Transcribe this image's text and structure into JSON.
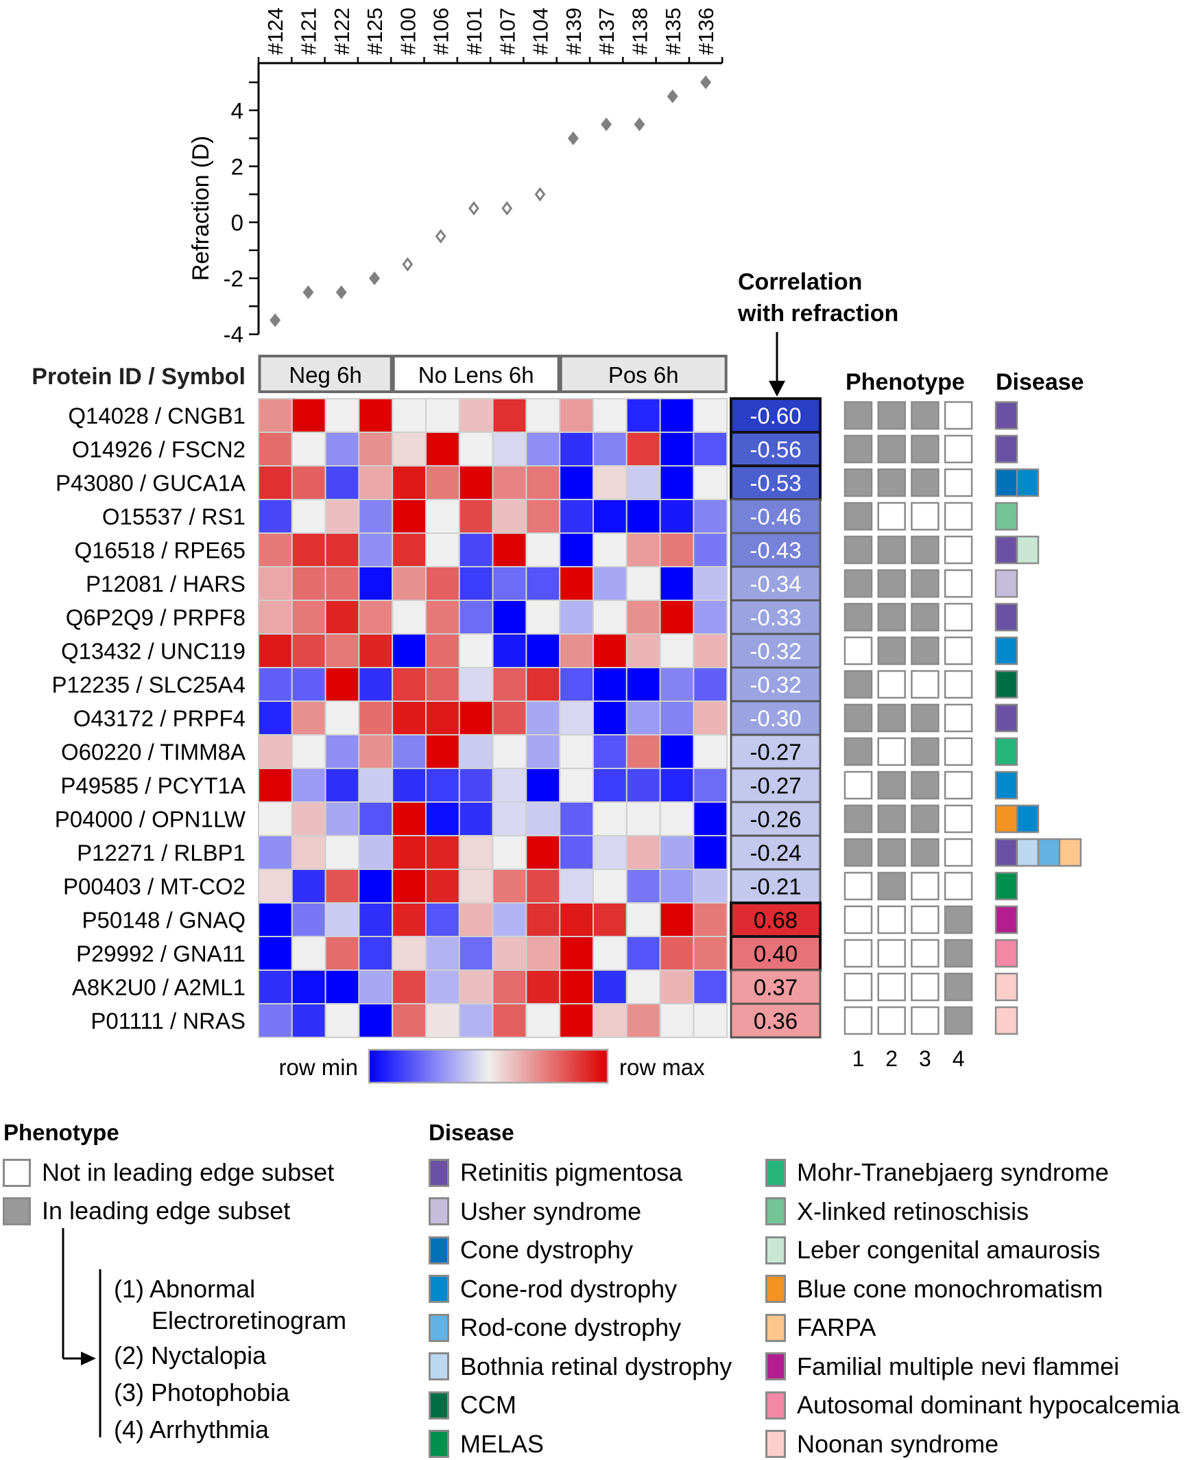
{
  "chart_data": [
    {
      "type": "scatter",
      "title": "",
      "ylabel": "Refraction (D)",
      "xlabel": "",
      "ylim": [
        -4,
        5.5
      ],
      "yticks": [
        -4,
        -2,
        0,
        2,
        4
      ],
      "ytick_labels": [
        "-4",
        "-2",
        "0",
        "2",
        "4"
      ],
      "minor_yticks": [
        -3,
        -1,
        1,
        3,
        5
      ],
      "x_position": "top",
      "categories": [
        "#124",
        "#121",
        "#122",
        "#125",
        "#100",
        "#106",
        "#101",
        "#107",
        "#104",
        "#139",
        "#137",
        "#138",
        "#135",
        "#136"
      ],
      "values": [
        -3.5,
        -2.5,
        -2.5,
        -2,
        -1.5,
        -0.5,
        0.5,
        0.5,
        1,
        3,
        3.5,
        3.5,
        4.5,
        5
      ],
      "marker_filled": [
        true,
        true,
        true,
        true,
        false,
        false,
        false,
        false,
        false,
        true,
        true,
        true,
        true,
        true
      ],
      "marker_color": "#808080",
      "grid": false
    },
    {
      "type": "heatmap",
      "row_header": "Protein ID / Symbol",
      "column_groups": [
        {
          "label": "Neg 6h",
          "span": 4,
          "fill": "#e6e6e6"
        },
        {
          "label": "No Lens 6h",
          "span": 5,
          "fill": "#ffffff"
        },
        {
          "label": "Pos 6h",
          "span": 5,
          "fill": "#e6e6e6"
        }
      ],
      "columns": [
        "#124",
        "#121",
        "#122",
        "#125",
        "#100",
        "#106",
        "#101",
        "#107",
        "#104",
        "#139",
        "#137",
        "#138",
        "#135",
        "#136"
      ],
      "value_scale": "row-normalized, -1 = row min (blue), 0 = mid (light gray), 1 = row max (red)",
      "colorbar": {
        "min_label": "row min",
        "max_label": "row max",
        "min_color": "#0000ff",
        "mid_color": "#efefef",
        "max_color": "#dd0000"
      },
      "rows": [
        {
          "label": "Q14028 / CNGB1",
          "values": [
            0.4,
            1,
            0,
            1,
            0,
            0,
            0.2,
            0.8,
            0,
            0.35,
            0,
            -0.85,
            -1,
            0
          ]
        },
        {
          "label": "O14926 / FSCN2",
          "values": [
            0.55,
            0,
            -0.4,
            0.4,
            0.1,
            1,
            0,
            -0.1,
            -0.4,
            -0.8,
            -0.45,
            0.75,
            -1,
            -0.65
          ]
        },
        {
          "label": "P43080 / GUCA1A",
          "values": [
            0.8,
            0.6,
            -0.7,
            0.3,
            0.9,
            0.5,
            1,
            0.45,
            0.5,
            -1,
            0.1,
            -0.15,
            -1,
            0
          ]
        },
        {
          "label": "O15537 / RS1",
          "values": [
            -0.7,
            0,
            0.2,
            -0.45,
            1,
            0,
            0.7,
            0.2,
            0.5,
            -0.8,
            -0.95,
            -1,
            -0.9,
            -0.45
          ]
        },
        {
          "label": "Q16518 / RPE65",
          "values": [
            0.5,
            0.8,
            0.8,
            -0.4,
            0.8,
            0,
            -0.7,
            1,
            0,
            -1,
            0,
            0.35,
            0.5,
            -0.5
          ]
        },
        {
          "label": "P12081 / HARS",
          "values": [
            0.3,
            0.55,
            0.55,
            -0.95,
            0.4,
            0.6,
            -0.75,
            -0.55,
            -0.65,
            1,
            -0.3,
            0,
            -1,
            -0.2
          ]
        },
        {
          "label": "Q6P2Q9 / PRPF8",
          "values": [
            0.3,
            0.5,
            0.85,
            0.45,
            0,
            0.5,
            -0.55,
            -1,
            0,
            -0.25,
            0,
            0.4,
            1,
            -0.35
          ]
        },
        {
          "label": "Q13432 / UNC119",
          "values": [
            0.9,
            0.7,
            0.5,
            0.85,
            -1,
            0.55,
            0,
            -0.9,
            -1,
            0.4,
            1,
            0.25,
            0,
            0.25
          ]
        },
        {
          "label": "P12235 / SLC25A4",
          "values": [
            -0.6,
            -0.6,
            1,
            -0.8,
            0.75,
            0.6,
            -0.1,
            0.6,
            0.8,
            -0.65,
            -1,
            -1,
            -0.45,
            -0.6
          ]
        },
        {
          "label": "O43172 / PRPF4",
          "values": [
            -0.85,
            0.4,
            0,
            0.55,
            0.9,
            0.9,
            1,
            0.65,
            -0.3,
            -0.1,
            -1,
            -0.35,
            -0.45,
            0.25
          ]
        },
        {
          "label": "O60220 / TIMM8A",
          "values": [
            0.2,
            0,
            -0.4,
            0.4,
            -0.45,
            1,
            -0.15,
            0,
            -0.3,
            0,
            -0.65,
            0.5,
            -1,
            0
          ]
        },
        {
          "label": "P49585 / PCYT1A",
          "values": [
            1,
            -0.35,
            -0.8,
            -0.15,
            -0.8,
            -0.75,
            -0.7,
            -0.1,
            -1,
            0,
            -0.75,
            -0.7,
            -0.85,
            -0.55
          ]
        },
        {
          "label": "P04000 / OPN1LW",
          "values": [
            0,
            0.2,
            -0.3,
            -0.65,
            1,
            -0.95,
            -0.8,
            -0.1,
            -0.15,
            -0.6,
            0,
            0,
            0,
            -1
          ]
        },
        {
          "label": "P12271 / RLBP1",
          "values": [
            -0.4,
            0.15,
            0,
            -0.2,
            0.9,
            0.85,
            0.1,
            0,
            1,
            -0.6,
            -0.1,
            0.25,
            -0.3,
            -1
          ]
        },
        {
          "label": "P00403 / MT-CO2",
          "values": [
            0.1,
            -0.8,
            0.65,
            -1,
            1,
            0.85,
            0.1,
            0.5,
            0.7,
            -0.1,
            0,
            -0.5,
            -0.35,
            -0.2
          ]
        },
        {
          "label": "P50148 / GNAQ",
          "values": [
            -1,
            -0.5,
            -0.15,
            -0.8,
            0.85,
            -0.65,
            0.25,
            -0.25,
            0.8,
            0.9,
            0.8,
            0,
            1,
            0.5
          ]
        },
        {
          "label": "P29992 / GNA11",
          "values": [
            -1,
            0,
            0.55,
            -0.75,
            0.1,
            -0.25,
            -0.55,
            0.2,
            0.3,
            1,
            0,
            -0.65,
            0.6,
            0.5
          ]
        },
        {
          "label": "A8K2U0 / A2ML1",
          "values": [
            -0.8,
            -0.95,
            -1,
            -0.3,
            0.7,
            -0.25,
            0.2,
            0.55,
            0.85,
            1,
            -0.8,
            0,
            0.25,
            -0.65
          ]
        },
        {
          "label": "P01111 / NRAS",
          "values": [
            -0.5,
            -0.8,
            0,
            -1,
            0.55,
            0.05,
            -0.25,
            0.6,
            0,
            1,
            0.15,
            0.4,
            0,
            0
          ]
        }
      ]
    },
    {
      "type": "table",
      "title": "Correlation with refraction",
      "values": [
        -0.6,
        -0.56,
        -0.53,
        -0.46,
        -0.43,
        -0.34,
        -0.33,
        -0.32,
        -0.32,
        -0.3,
        -0.27,
        -0.27,
        -0.26,
        -0.24,
        -0.21,
        0.68,
        0.4,
        0.37,
        0.36
      ],
      "labels": [
        "-0.60",
        "-0.56",
        "-0.53",
        "-0.46",
        "-0.43",
        "-0.34",
        "-0.33",
        "-0.32",
        "-0.32",
        "-0.30",
        "-0.27",
        "-0.27",
        "-0.26",
        "-0.24",
        "-0.21",
        "0.68",
        "0.40",
        "0.37",
        "0.36"
      ],
      "fills": [
        "#2a3fc6",
        "#4c5fce",
        "#4c5fce",
        "#7582d8",
        "#7582d8",
        "#9ba4e0",
        "#9ba4e0",
        "#9ba4e0",
        "#9ba4e0",
        "#9ba4e0",
        "#c3c8ec",
        "#c3c8ec",
        "#c3c8ec",
        "#c3c8ec",
        "#c3c8ec",
        "#e02a32",
        "#e9727a",
        "#f09ca0",
        "#f09ca0"
      ],
      "text_colors": [
        "#ffffff",
        "#ffffff",
        "#ffffff",
        "#ffffff",
        "#ffffff",
        "#ffffff",
        "#ffffff",
        "#ffffff",
        "#ffffff",
        "#ffffff",
        "#000000",
        "#000000",
        "#000000",
        "#000000",
        "#000000",
        "#000000",
        "#000000",
        "#000000",
        "#000000"
      ],
      "emphasized": [
        true,
        true,
        true,
        false,
        false,
        false,
        false,
        false,
        false,
        false,
        false,
        false,
        false,
        false,
        false,
        true,
        true,
        false,
        false
      ]
    },
    {
      "type": "table",
      "title": "Phenotype",
      "columns": [
        "1",
        "2",
        "3",
        "4"
      ],
      "in_leading_edge": [
        [
          1,
          1,
          1,
          0
        ],
        [
          1,
          1,
          1,
          0
        ],
        [
          1,
          1,
          1,
          0
        ],
        [
          1,
          0,
          0,
          0
        ],
        [
          1,
          1,
          1,
          0
        ],
        [
          1,
          1,
          1,
          0
        ],
        [
          1,
          1,
          1,
          0
        ],
        [
          0,
          1,
          1,
          0
        ],
        [
          1,
          0,
          0,
          0
        ],
        [
          1,
          1,
          1,
          0
        ],
        [
          1,
          0,
          1,
          0
        ],
        [
          0,
          1,
          1,
          0
        ],
        [
          1,
          1,
          1,
          0
        ],
        [
          1,
          1,
          1,
          0
        ],
        [
          0,
          1,
          0,
          0
        ],
        [
          0,
          0,
          0,
          1
        ],
        [
          0,
          0,
          0,
          1
        ],
        [
          0,
          0,
          0,
          1
        ],
        [
          0,
          0,
          0,
          1
        ]
      ]
    },
    {
      "type": "table",
      "title": "Disease",
      "assignments": [
        [
          "Retinitis pigmentosa"
        ],
        [
          "Retinitis pigmentosa"
        ],
        [
          "Cone dystrophy",
          "Cone-rod dystrophy"
        ],
        [
          "X-linked retinoschisis"
        ],
        [
          "Retinitis pigmentosa",
          "Leber congenital amaurosis"
        ],
        [
          "Usher syndrome"
        ],
        [
          "Retinitis pigmentosa"
        ],
        [
          "Cone-rod dystrophy"
        ],
        [
          "CCM"
        ],
        [
          "Retinitis pigmentosa"
        ],
        [
          "Mohr-Tranebjaerg syndrome"
        ],
        [
          "Cone-rod dystrophy"
        ],
        [
          "Blue cone monochromatism",
          "Cone-rod dystrophy"
        ],
        [
          "Retinitis pigmentosa",
          "Bothnia retinal dystrophy",
          "Rod-cone dystrophy",
          "FARPA"
        ],
        [
          "MELAS"
        ],
        [
          "Familial multiple nevi flammei"
        ],
        [
          "Autosomal dominant hypocalcemia"
        ],
        [
          "Noonan syndrome"
        ],
        [
          "Noonan syndrome"
        ]
      ]
    }
  ],
  "labels": {
    "correlation_title_line1": "Correlation",
    "correlation_title_line2": "with refraction",
    "phenotype_header": "Phenotype",
    "disease_header": "Disease"
  },
  "legend": {
    "phenotype": {
      "title": "Phenotype",
      "not_in": {
        "label": "Not in leading edge subset",
        "color": "#ffffff"
      },
      "in": {
        "label": "In leading edge subset",
        "color": "#999999"
      },
      "items": [
        {
          "num": "(1)",
          "label": "Abnormal",
          "label2": "Electroretinogram"
        },
        {
          "num": "(2)",
          "label": "Nyctalopia"
        },
        {
          "num": "(3)",
          "label": "Photophobia"
        },
        {
          "num": "(4)",
          "label": "Arrhythmia"
        }
      ]
    },
    "disease": {
      "title": "Disease",
      "items": [
        {
          "label": "Retinitis pigmentosa",
          "color": "#6a51a3"
        },
        {
          "label": "Usher syndrome",
          "color": "#c6bcdc"
        },
        {
          "label": "Cone dystrophy",
          "color": "#0070b8"
        },
        {
          "label": "Cone-rod dystrophy",
          "color": "#0088cc"
        },
        {
          "label": "Rod-cone dystrophy",
          "color": "#62b2e2"
        },
        {
          "label": "Bothnia retinal dystrophy",
          "color": "#bdd9f1"
        },
        {
          "label": "CCM",
          "color": "#006d44"
        },
        {
          "label": "MELAS",
          "color": "#00904c"
        },
        {
          "label": "Mohr-Tranebjaerg syndrome",
          "color": "#25b57b"
        },
        {
          "label": "X-linked retinoschisis",
          "color": "#74c496"
        },
        {
          "label": "Leber congenital amaurosis",
          "color": "#c7e7d4"
        },
        {
          "label": "Blue cone monochromatism",
          "color": "#f59322"
        },
        {
          "label": "FARPA",
          "color": "#fdc68b"
        },
        {
          "label": "Familial multiple nevi flammei",
          "color": "#b21e8e"
        },
        {
          "label": "Autosomal dominant hypocalcemia",
          "color": "#f287a6"
        },
        {
          "label": "Noonan syndrome",
          "color": "#fbcfc9"
        }
      ]
    }
  }
}
